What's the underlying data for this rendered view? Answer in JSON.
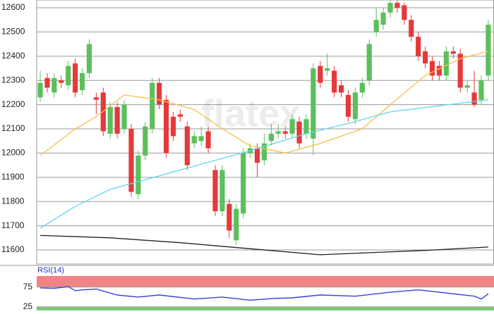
{
  "chart_data": [
    {
      "type": "candlestick",
      "watermark": "flatex",
      "open": [
        12230,
        12310,
        12250,
        12300,
        12280,
        12370,
        12260,
        12330,
        12230,
        12250,
        12080,
        12190,
        12100,
        12100,
        11830,
        11990,
        12100,
        12290,
        12220,
        12150,
        12160,
        12110,
        12040,
        12050,
        12090,
        11930,
        11760,
        11790,
        11640,
        11750,
        12000,
        12020,
        11970,
        12050,
        12080,
        12090,
        12080,
        12130,
        12080,
        12060,
        12360,
        12340,
        12340,
        12280,
        12240,
        12140,
        12250,
        12300,
        12500,
        12530,
        12580,
        12620,
        12610,
        12550,
        12480,
        12420,
        12380,
        12360,
        12320,
        12420,
        12410,
        12270,
        12250,
        12220,
        12320
      ],
      "high": [
        12340,
        12330,
        12330,
        12320,
        12380,
        12390,
        12350,
        12470,
        12250,
        12270,
        12210,
        12210,
        12220,
        12120,
        12010,
        12130,
        12310,
        12310,
        12240,
        12170,
        12180,
        12130,
        12090,
        12110,
        12110,
        11950,
        11950,
        11810,
        11790,
        12020,
        12040,
        12040,
        12080,
        12120,
        12120,
        12110,
        12160,
        12150,
        12160,
        12370,
        12380,
        12410,
        12360,
        12300,
        12260,
        12270,
        12310,
        12470,
        12600,
        12600,
        12630,
        12630,
        12620,
        12570,
        12500,
        12440,
        12400,
        12380,
        12440,
        12440,
        12430,
        12300,
        12340,
        12320,
        12550
      ],
      "low": [
        12210,
        12250,
        12230,
        12270,
        12260,
        12230,
        12240,
        12310,
        12160,
        12070,
        12060,
        12060,
        12080,
        11820,
        11810,
        11970,
        12080,
        12180,
        11980,
        12050,
        12130,
        11930,
        12020,
        12030,
        12000,
        11740,
        11740,
        11650,
        11620,
        11730,
        11980,
        11900,
        11950,
        12030,
        12060,
        12060,
        12060,
        12020,
        12060,
        11990,
        12270,
        12320,
        12230,
        12230,
        12130,
        12120,
        12230,
        12280,
        12480,
        12510,
        12560,
        12580,
        12530,
        12460,
        12380,
        12350,
        12300,
        12300,
        12300,
        12390,
        12250,
        12250,
        12190,
        12200,
        12300
      ],
      "close": [
        12290,
        12270,
        12310,
        12290,
        12360,
        12250,
        12330,
        12450,
        12220,
        12090,
        12190,
        12080,
        12200,
        11840,
        11990,
        12110,
        12290,
        12200,
        12000,
        12070,
        12150,
        11950,
        12070,
        12070,
        12020,
        11760,
        11930,
        11680,
        11770,
        12000,
        12020,
        11960,
        12040,
        12080,
        12090,
        12080,
        12140,
        12040,
        12140,
        12350,
        12290,
        12350,
        12250,
        12250,
        12150,
        12250,
        12290,
        12450,
        12550,
        12580,
        12620,
        12600,
        12550,
        12480,
        12400,
        12370,
        12320,
        12320,
        12420,
        12410,
        12270,
        12280,
        12200,
        12300,
        12530
      ],
      "up_color": "#5cbf5c",
      "down_color": "#e5393a",
      "ylim": [
        11542,
        12632
      ],
      "yticks": [
        11600,
        11700,
        11800,
        11900,
        12000,
        12100,
        12200,
        12300,
        12400,
        12500,
        12600
      ],
      "grid": true,
      "series": [
        {
          "color": "#f5c04a",
          "x": [
            0,
            5,
            8,
            12,
            17,
            22,
            26,
            30,
            35,
            40,
            46,
            50,
            55,
            60,
            64
          ],
          "values": [
            11990,
            12100,
            12150,
            12240,
            12220,
            12180,
            12100,
            12030,
            12000,
            12040,
            12100,
            12200,
            12320,
            12390,
            12420
          ]
        },
        {
          "color": "#5fd8ea",
          "x": [
            0,
            5,
            10,
            15,
            20,
            25,
            30,
            38,
            45,
            50,
            57,
            64
          ],
          "values": [
            11690,
            11780,
            11850,
            11890,
            11930,
            11970,
            12010,
            12080,
            12130,
            12170,
            12195,
            12220
          ]
        },
        {
          "color": "#222222",
          "x": [
            0,
            10,
            20,
            30,
            40,
            48,
            55,
            64
          ],
          "values": [
            11660,
            11650,
            11630,
            11605,
            11580,
            11590,
            11598,
            11612
          ]
        }
      ]
    },
    {
      "type": "line",
      "title": "RSI(14)",
      "ylim": [
        16,
        103
      ],
      "yticks": [
        25,
        75
      ],
      "series": [
        {
          "color": "#3344dd",
          "x": [
            0,
            2,
            4,
            5,
            6,
            8,
            11,
            14,
            17,
            22,
            26,
            30,
            33,
            36,
            40,
            45,
            50,
            54,
            58,
            62,
            63,
            64
          ],
          "values": [
            73,
            72,
            76,
            66,
            68,
            70,
            55,
            50,
            55,
            45,
            50,
            42,
            46,
            48,
            55,
            52,
            62,
            68,
            60,
            52,
            45,
            58
          ]
        }
      ]
    }
  ]
}
